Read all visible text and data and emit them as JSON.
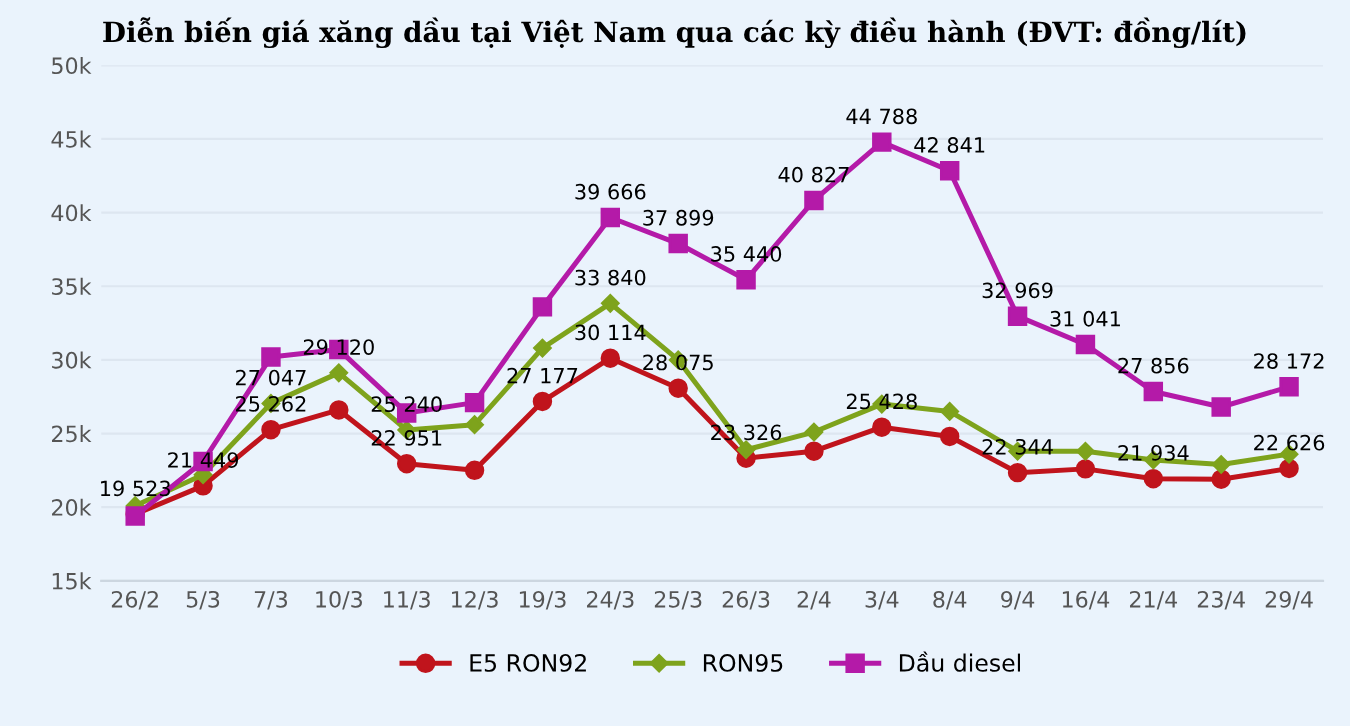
{
  "chart_data": {
    "type": "line",
    "title": "Diễn biến giá xăng dầu tại Việt Nam qua các kỳ điều hành (ĐVT: đồng/lít)",
    "categories": [
      "26/2",
      "5/3",
      "7/3",
      "10/3",
      "11/3",
      "12/3",
      "19/3",
      "24/3",
      "25/3",
      "26/3",
      "2/4",
      "3/4",
      "8/4",
      "9/4",
      "16/4",
      "21/4",
      "23/4",
      "29/4"
    ],
    "series": [
      {
        "name": "E5 RON92",
        "color": "#c0141c",
        "marker": "circle",
        "values": [
          19523,
          21449,
          25262,
          26600,
          22951,
          22500,
          27177,
          30114,
          28075,
          23326,
          23800,
          25428,
          24800,
          22344,
          22600,
          21934,
          21900,
          22626
        ],
        "value_labels": [
          "19 523",
          "21 449",
          "25 262",
          null,
          "22 951",
          null,
          "27 177",
          "30 114",
          "28 075",
          "23 326",
          null,
          "25 428",
          null,
          "22 344",
          null,
          "21 934",
          null,
          "22 626"
        ]
      },
      {
        "name": "RON95",
        "color": "#7ea31c",
        "marker": "diamond",
        "values": [
          20100,
          22200,
          27047,
          29120,
          25240,
          25600,
          30800,
          33840,
          30000,
          23900,
          25100,
          27000,
          26500,
          23800,
          23800,
          23200,
          22900,
          23600
        ],
        "value_labels": [
          null,
          null,
          "27 047",
          "29 120",
          "25 240",
          null,
          null,
          "33 840",
          null,
          null,
          null,
          null,
          null,
          null,
          null,
          null,
          null,
          null
        ]
      },
      {
        "name": "Dầu diesel",
        "color": "#b41aa8",
        "marker": "square",
        "values": [
          19400,
          23100,
          30200,
          30700,
          26400,
          27100,
          33600,
          39666,
          37899,
          35440,
          40827,
          44788,
          42841,
          32969,
          31041,
          27856,
          26800,
          28172
        ],
        "value_labels": [
          null,
          null,
          null,
          null,
          null,
          null,
          null,
          "39 666",
          "37 899",
          "35 440",
          "40 827",
          "44 788",
          "42 841",
          "32 969",
          "31 041",
          "27 856",
          null,
          "28 172"
        ]
      }
    ],
    "ylim": [
      15000,
      50000
    ],
    "yticks": [
      {
        "value": 15000,
        "label": "15k"
      },
      {
        "value": 20000,
        "label": "20k"
      },
      {
        "value": 25000,
        "label": "25k"
      },
      {
        "value": 30000,
        "label": "30k"
      },
      {
        "value": 35000,
        "label": "35k"
      },
      {
        "value": 40000,
        "label": "40k"
      },
      {
        "value": 45000,
        "label": "45k"
      },
      {
        "value": 50000,
        "label": "50k"
      }
    ],
    "grid": "y",
    "legend": "bottom"
  }
}
